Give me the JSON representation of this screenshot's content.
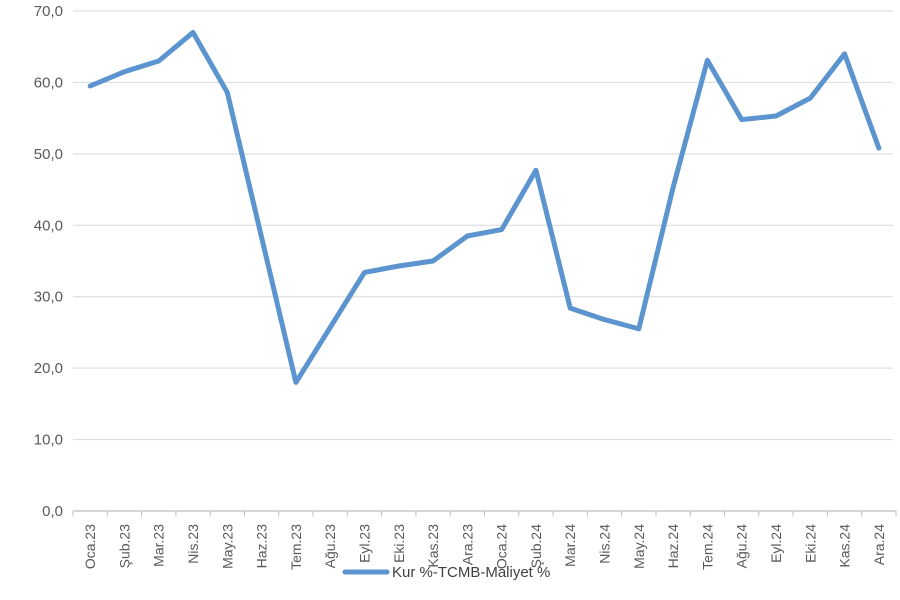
{
  "chart_data": {
    "type": "line",
    "title": "",
    "xlabel": "",
    "ylabel": "",
    "categories": [
      "Oca.23",
      "Şub.23",
      "Mar.23",
      "Nis.23",
      "May.23",
      "Haz.23",
      "Tem.23",
      "Ağu.23",
      "Eyl.23",
      "Eki.23",
      "Kas.23",
      "Ara.23",
      "Oca.24",
      "Şub.24",
      "Mar.24",
      "Nis.24",
      "May.24",
      "Haz.24",
      "Tem.24",
      "Ağu.24",
      "Eyl.24",
      "Eki.24",
      "Kas.24",
      "Ara.24"
    ],
    "series": [
      {
        "name": "Kur %-TCMB-Maliyet %",
        "values": [
          59.5,
          61.5,
          63.0,
          67.0,
          58.6,
          38.3,
          18.0,
          25.7,
          33.4,
          34.3,
          35.0,
          38.5,
          39.4,
          47.7,
          28.4,
          26.8,
          25.5,
          45.3,
          63.1,
          54.8,
          55.3,
          57.8,
          64.0,
          50.8
        ]
      }
    ],
    "ylim": [
      0,
      70
    ],
    "ytick_step": 10,
    "ytick_labels": [
      "0,0",
      "10,0",
      "20,0",
      "30,0",
      "40,0",
      "50,0",
      "60,0",
      "70,0"
    ],
    "grid": true,
    "legend_position": "bottom-center",
    "legend_label": "Kur %-TCMB-Maliyet %",
    "colors": {
      "line": "#5B94CE",
      "grid": "#D9D9D9",
      "axis": "#BFBFBF",
      "tick_text": "#595959",
      "legend_text": "#404040",
      "background": "#FFFFFF"
    }
  }
}
